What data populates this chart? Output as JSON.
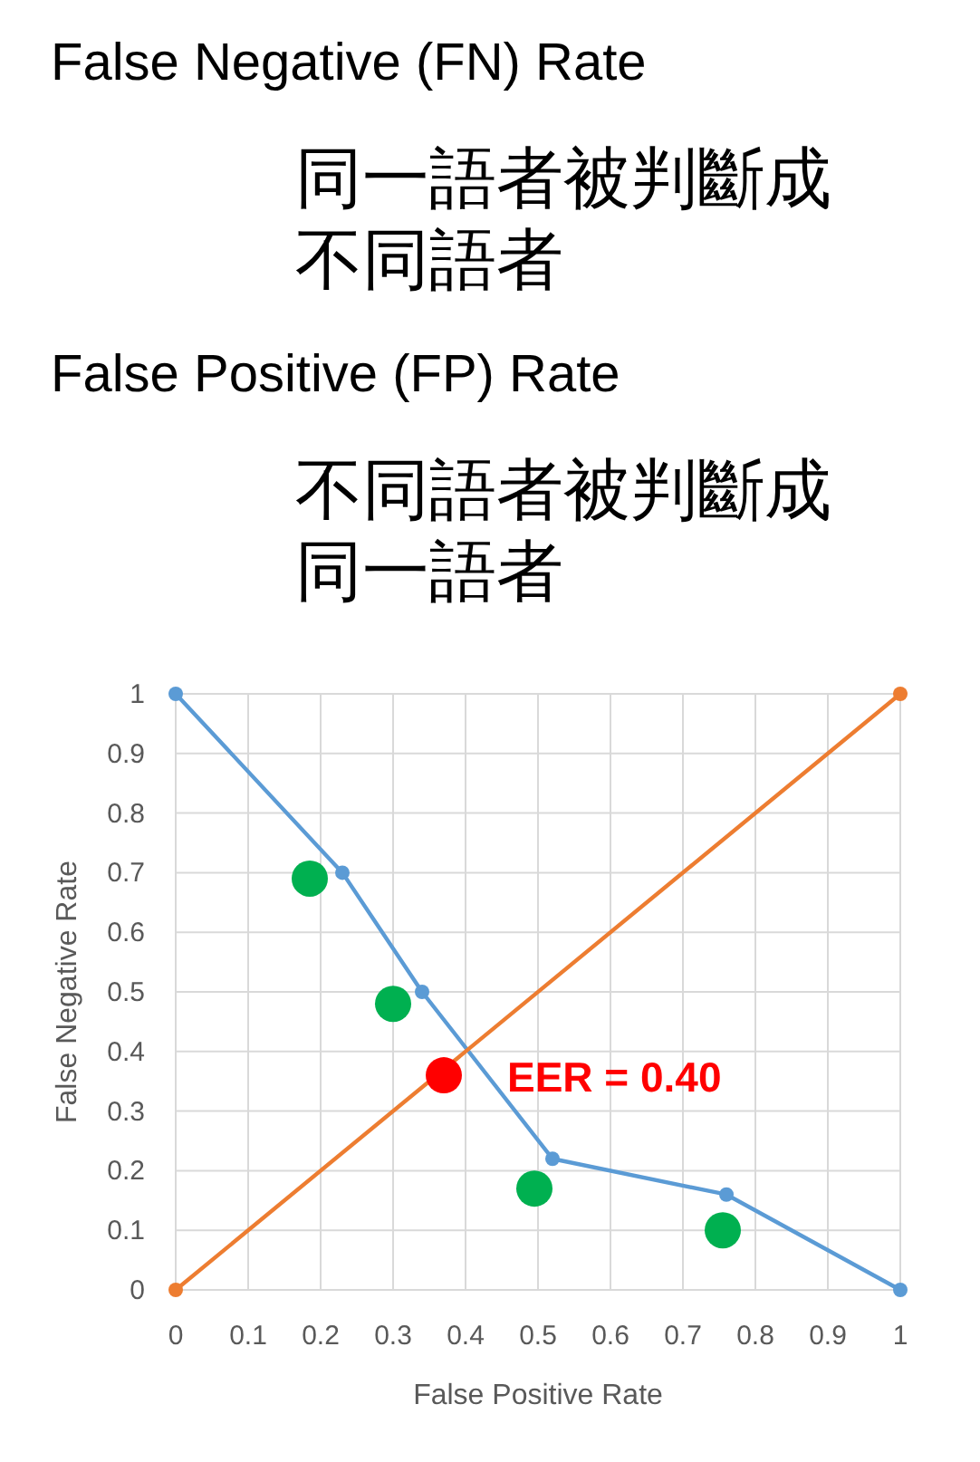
{
  "chart_data": {
    "type": "line",
    "annotations": [
      "False Negative (FN) Rate",
      "同一語者被判斷成不同語者",
      "False Positive (FP) Rate",
      "不同語者被判斷成同一語者",
      {
        "text": "EER = 0.40",
        "x": 0.37,
        "y": 0.36
      }
    ],
    "xlabel": "False Positive Rate",
    "ylabel": "False Negative Rate",
    "xlim": [
      0,
      1
    ],
    "ylim": [
      0,
      1
    ],
    "xticks": [
      0,
      0.1,
      0.2,
      0.3,
      0.4,
      0.5,
      0.6,
      0.7,
      0.8,
      0.9,
      1
    ],
    "yticks": [
      0,
      0.1,
      0.2,
      0.3,
      0.4,
      0.5,
      0.6,
      0.7,
      0.8,
      0.9,
      1
    ],
    "grid": true,
    "marker": "circle",
    "series": [
      {
        "color": "#5b9bd5",
        "x": [
          0,
          0.23,
          0.34,
          0.52,
          0.76,
          1
        ],
        "values": [
          1,
          0.7,
          0.5,
          0.22,
          0.16,
          0
        ]
      },
      {
        "color": "#ed7d31",
        "x": [
          0,
          1
        ],
        "values": [
          0,
          1
        ]
      },
      {
        "type": "scatter",
        "color": "#00b050",
        "x": [
          0.185,
          0.3,
          0.495,
          0.755
        ],
        "values": [
          0.69,
          0.48,
          0.17,
          0.1
        ]
      },
      {
        "type": "scatter",
        "color": "#ff0000",
        "x": [
          0.37
        ],
        "values": [
          0.36
        ]
      }
    ]
  }
}
